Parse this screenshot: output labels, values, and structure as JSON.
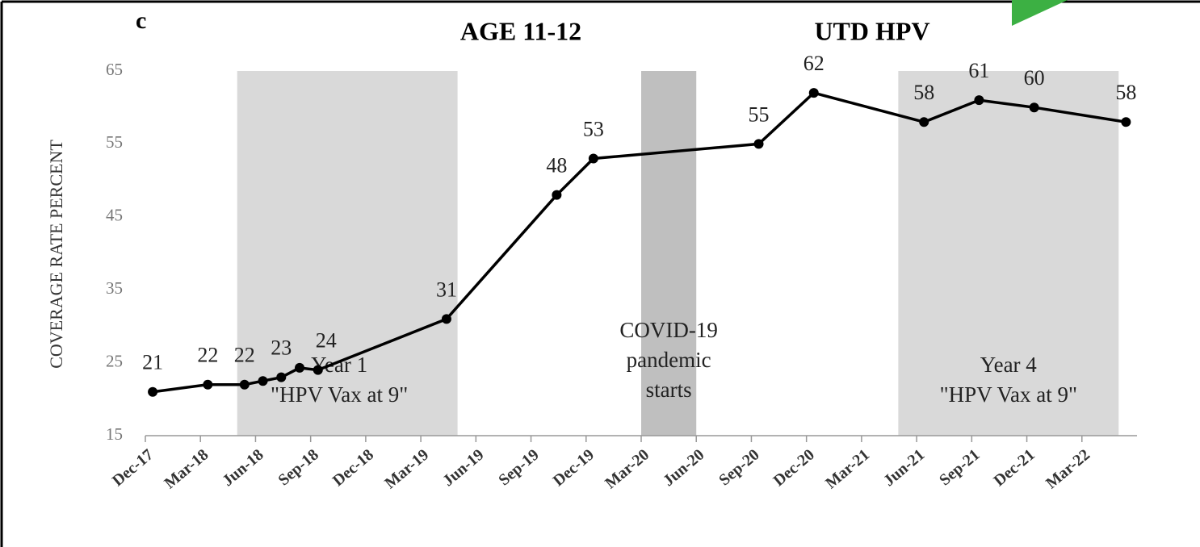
{
  "chart_data": {
    "type": "line",
    "panel_label": "c",
    "title": "AGE 11-12",
    "subtitle": "UTD HPV",
    "y_label": "COVERAGE RATE PERCENT",
    "x": [
      "2017-12",
      "2018-03",
      "2018-05",
      "2018-06",
      "2018-07",
      "2018-08",
      "2018-09",
      "2019-04",
      "2019-10",
      "2019-12",
      "2020-09",
      "2020-12",
      "2021-06",
      "2021-09",
      "2021-12",
      "2022-05"
    ],
    "series": [
      {
        "name": "UTD HPV",
        "color": "#000000",
        "values": [
          21,
          22,
          22,
          22.5,
          23,
          24.3,
          24,
          31,
          48,
          53,
          55,
          62,
          58,
          61,
          60,
          58
        ],
        "value_labels": [
          "21",
          "22",
          "22",
          null,
          "23",
          null,
          "24",
          "31",
          "48",
          "53",
          "55",
          "62",
          "58",
          "61",
          "60",
          "58"
        ]
      }
    ],
    "periods": [
      {
        "start": "2018-05",
        "end": "2019-05",
        "label": [
          "Year 1",
          "\"HPV Vax at 9\""
        ],
        "color": "#d9d9d9"
      },
      {
        "start": "2020-03",
        "end": "2020-06",
        "label": [
          "COVID-19",
          "pandemic",
          "starts"
        ],
        "color": "#bfbfbf"
      },
      {
        "start": "2021-05",
        "end": "2022-05",
        "label": [
          "Year 4",
          "\"HPV Vax at 9\""
        ],
        "color": "#d9d9d9"
      }
    ],
    "xlim": [
      "2017-12",
      "2022-06"
    ],
    "xticks": [
      {
        "value": "2017-12",
        "label": "Dec-17"
      },
      {
        "value": "2018-03",
        "label": "Mar-18"
      },
      {
        "value": "2018-06",
        "label": "Jun-18"
      },
      {
        "value": "2018-09",
        "label": "Sep-18"
      },
      {
        "value": "2018-12",
        "label": "Dec-18"
      },
      {
        "value": "2019-03",
        "label": "Mar-19"
      },
      {
        "value": "2019-06",
        "label": "Jun-19"
      },
      {
        "value": "2019-09",
        "label": "Sep-19"
      },
      {
        "value": "2019-12",
        "label": "Dec-19"
      },
      {
        "value": "2020-03",
        "label": "Mar-20"
      },
      {
        "value": "2020-06",
        "label": "Jun-20"
      },
      {
        "value": "2020-09",
        "label": "Sep-20"
      },
      {
        "value": "2020-12",
        "label": "Dec-20"
      },
      {
        "value": "2021-03",
        "label": "Mar-21"
      },
      {
        "value": "2021-06",
        "label": "Jun-21"
      },
      {
        "value": "2021-09",
        "label": "Sep-21"
      },
      {
        "value": "2021-12",
        "label": "Dec-21"
      },
      {
        "value": "2022-03",
        "label": "Mar-22"
      }
    ],
    "ylim": [
      15,
      65
    ],
    "yticks": [
      15,
      25,
      35,
      45,
      55,
      65
    ],
    "grid": false
  }
}
